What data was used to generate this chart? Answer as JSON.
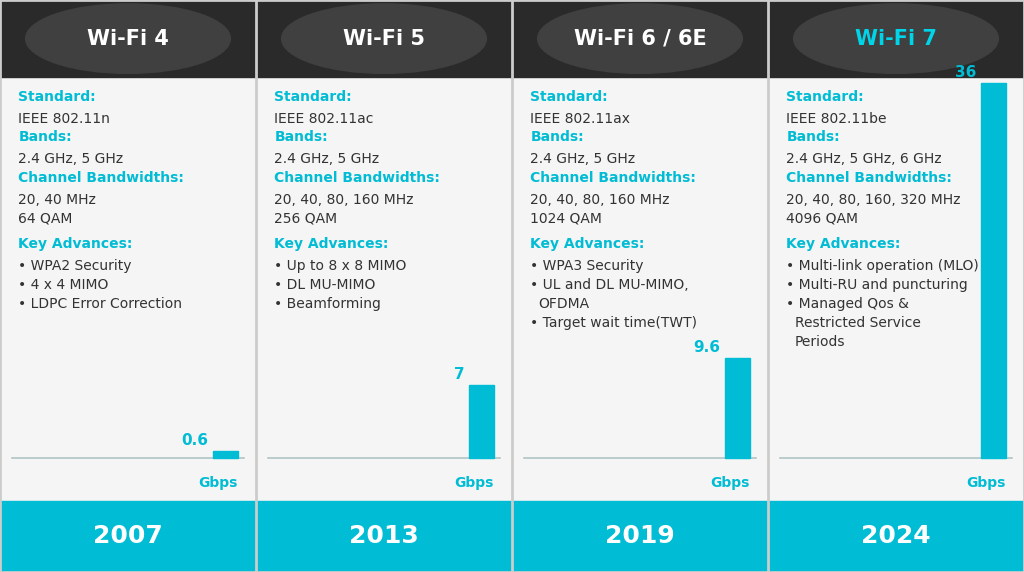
{
  "columns": [
    "Wi-Fi 4",
    "Wi-Fi 5",
    "Wi-Fi 6 / 6E",
    "Wi-Fi 7"
  ],
  "years": [
    "2007",
    "2013",
    "2019",
    "2024"
  ],
  "header_bg_dark": "#2a2a2a",
  "header_bg_light": "#3d3d3d",
  "header_text_color": [
    "#ffffff",
    "#ffffff",
    "#ffffff",
    "#00d4e8"
  ],
  "content_bg": "#f5f5f5",
  "footer_bg": "#00bcd4",
  "footer_text_color": "#ffffff",
  "cyan_color": "#00bcd4",
  "bar_color": "#00bcd4",
  "gbps_values": [
    0.6,
    7,
    9.6,
    36
  ],
  "col_content": [
    {
      "standard_label": "Standard:",
      "standard_val": "IEEE 802.11n",
      "bands_label": "Bands:",
      "bands_val": "2.4 GHz, 5 GHz",
      "bw_label": "Channel Bandwidths:",
      "bw_val": "20, 40 MHz",
      "extra": "64 QAM",
      "key_label": "Key Advances:",
      "key_items": [
        "WPA2 Security",
        "4 x 4 MIMO",
        "LDPC Error Correction"
      ]
    },
    {
      "standard_label": "Standard:",
      "standard_val": "IEEE 802.11ac",
      "bands_label": "Bands:",
      "bands_val": "2.4 GHz, 5 GHz",
      "bw_label": "Channel Bandwidths:",
      "bw_val": "20, 40, 80, 160 MHz",
      "extra": "256 QAM",
      "key_label": "Key Advances:",
      "key_items": [
        "Up to 8 x 8 MIMO",
        "DL MU-MIMO",
        "Beamforming"
      ]
    },
    {
      "standard_label": "Standard:",
      "standard_val": "IEEE 802.11ax",
      "bands_label": "Bands:",
      "bands_val": "2.4 GHz, 5 GHz",
      "bw_label": "Channel Bandwidths:",
      "bw_val": "20, 40, 80, 160 MHz",
      "extra": "1024 QAM",
      "key_label": "Key Advances:",
      "key_items": [
        "WPA3 Security",
        "UL and DL MU-MIMO,\n   OFDMA",
        "Target wait time(TWT)"
      ]
    },
    {
      "standard_label": "Standard:",
      "standard_val": "IEEE 802.11be",
      "bands_label": "Bands:",
      "bands_val": "2.4 GHz, 5 GHz, 6 GHz",
      "bw_label": "Channel Bandwidths:",
      "bw_val": "20, 40, 80, 160, 320 MHz",
      "extra": "4096 QAM",
      "key_label": "Key Advances:",
      "key_items": [
        "Multi-link operation (MLO)",
        "Multi-RU and puncturing",
        "Managed Qos &\n   Restricted Service\n   Periods"
      ]
    }
  ],
  "divider_color": "#b0c4c4",
  "text_color": "#333333",
  "header_fontsize": 15,
  "footer_fontsize": 18,
  "cyan_fontsize": 10,
  "val_fontsize": 10,
  "bar_label_fontsize": 11,
  "gbps_label_fontsize": 10,
  "outer_border_color": "#cccccc",
  "col_divider_color": "#cccccc"
}
